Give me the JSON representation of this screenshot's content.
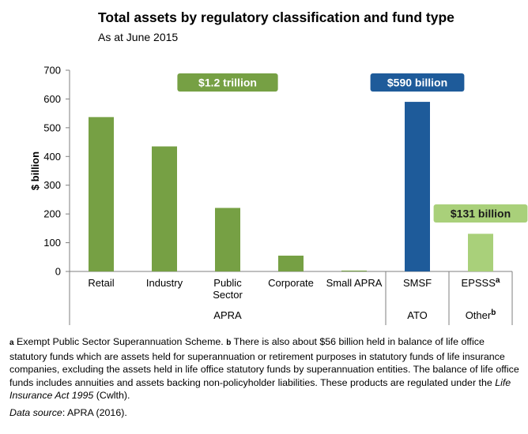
{
  "chart_data": {
    "type": "bar",
    "title": "Total assets by regulatory classification and fund type",
    "subtitle": "As at June 2015",
    "ylabel": "$ billion",
    "xlabel": "",
    "ylim": [
      0,
      700
    ],
    "yticks": [
      0,
      100,
      200,
      300,
      400,
      500,
      600,
      700
    ],
    "grid": false,
    "categories": [
      {
        "label": [
          "Retail"
        ],
        "sup": ""
      },
      {
        "label": [
          "Industry"
        ],
        "sup": ""
      },
      {
        "label": [
          "Public",
          "Sector"
        ],
        "sup": ""
      },
      {
        "label": [
          "Corporate"
        ],
        "sup": ""
      },
      {
        "label": [
          "Small APRA"
        ],
        "sup": ""
      },
      {
        "label": [
          "SMSF"
        ],
        "sup": ""
      },
      {
        "label": [
          "EPSSS"
        ],
        "sup": "a"
      }
    ],
    "values": [
      537,
      435,
      221,
      55,
      3,
      590,
      131
    ],
    "bar_colors": [
      "#76a044",
      "#76a044",
      "#76a044",
      "#76a044",
      "#76a044",
      "#1e5b9a",
      "#a9d07a"
    ],
    "groups": [
      {
        "label": "APRA",
        "sup": "",
        "start": 0,
        "end": 4
      },
      {
        "label": "ATO",
        "sup": "",
        "start": 5,
        "end": 5
      },
      {
        "label": "Other",
        "sup": "b",
        "start": 6,
        "end": 6
      }
    ],
    "callouts": [
      {
        "text": "$1.2 trillion",
        "color": "#76a044",
        "group": 0
      },
      {
        "text": "$590 billion",
        "color": "#1e5b9a",
        "group": 1
      },
      {
        "text": "$131 billion",
        "color": "#a9d07a",
        "group": 2
      }
    ]
  },
  "notes": {
    "a_marker": "a",
    "a_text": " Exempt Public Sector Superannuation Scheme. ",
    "b_marker": "b",
    "b_text": " There is also about $56 billion held in balance of life office statutory funds which are assets held for superannuation or retirement purposes in statutory funds of life insurance companies, excluding the assets held in life office statutory funds by superannuation entities. The balance of life office funds includes annuities and assets backing non-policyholder liabilities. These products are regulated under the ",
    "act_name": "Life Insurance Act 1995",
    "act_suffix": " (Cwlth).",
    "source_label": "Data source",
    "source_text": ": APRA (2016)."
  }
}
